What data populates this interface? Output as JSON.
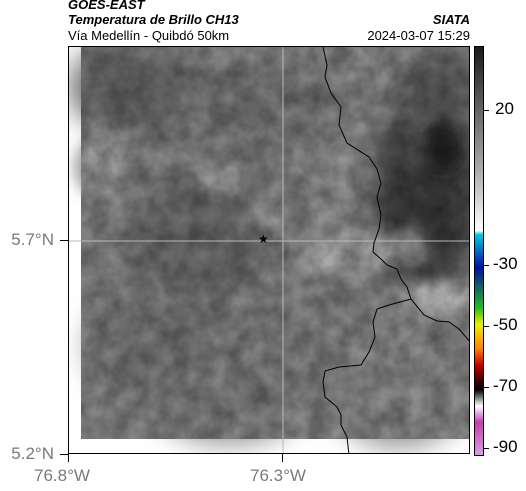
{
  "header": {
    "line1": "GOES-EAST",
    "line2": "Temperatura de Brillo CH13",
    "line3": "Vía Medellín - Quibdó 50km",
    "brand": "SIATA",
    "datetime": "2024-03-07 15:29"
  },
  "axes": {
    "y_labels": [
      "5.7°N",
      "5.2°N"
    ],
    "x_labels": [
      "76.8°W",
      "76.3°W"
    ]
  },
  "marker": {
    "icon": "star-icon"
  },
  "colorbar": {
    "ticks": [
      "20",
      "-30",
      "-50",
      "-70",
      "-90"
    ],
    "colors": {
      "top": "#1a1a1a",
      "mid_gray": "#aaaaaa",
      "white": "#ffffff",
      "cyan": "#00c8e6",
      "blue": "#0010a0",
      "green": "#20c020",
      "yellow": "#f0f000",
      "orange": "#ff8000",
      "red": "#c00000",
      "black": "#000000",
      "magenta": "#c040b0",
      "lavender": "#d9a0e0"
    }
  }
}
